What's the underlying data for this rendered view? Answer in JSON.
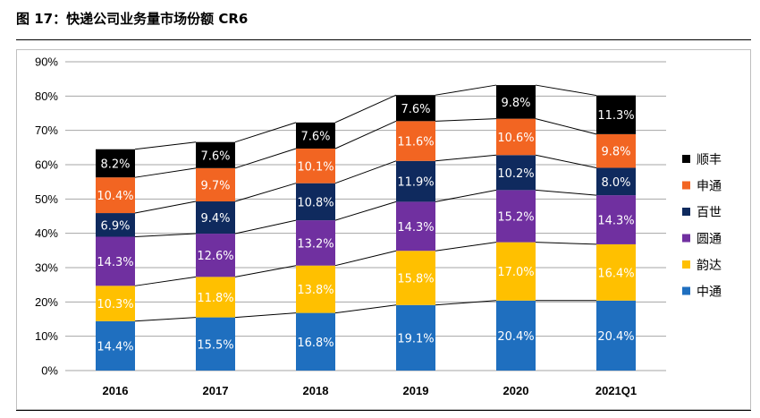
{
  "figure_title": "图 17：快递公司业务量市场份额 CR6",
  "chart_data": {
    "type": "bar",
    "stacked": true,
    "categories": [
      "2016",
      "2017",
      "2018",
      "2019",
      "2020",
      "2021Q1"
    ],
    "ylim": [
      0,
      90
    ],
    "yticks": [
      "0%",
      "10%",
      "20%",
      "30%",
      "40%",
      "50%",
      "60%",
      "70%",
      "80%",
      "90%"
    ],
    "grid": true,
    "legend_position": "right",
    "connector_lines": true,
    "series": [
      {
        "name": "中通",
        "color": "#1f6fbf",
        "label_color": "#ffffff",
        "values": [
          14.4,
          15.5,
          16.8,
          19.1,
          20.4,
          20.4
        ],
        "labels": [
          "14.4%",
          "15.5%",
          "16.8%",
          "19.1%",
          "20.4%",
          "20.4%"
        ]
      },
      {
        "name": "韵达",
        "color": "#ffc000",
        "label_color": "#ffffff",
        "values": [
          10.3,
          11.8,
          13.8,
          15.8,
          17.0,
          16.4
        ],
        "labels": [
          "10.3%",
          "11.8%",
          "13.8%",
          "15.8%",
          "17.0%",
          "16.4%"
        ]
      },
      {
        "name": "圆通",
        "color": "#7030a0",
        "label_color": "#ffffff",
        "values": [
          14.3,
          12.6,
          13.2,
          14.3,
          15.2,
          14.3
        ],
        "labels": [
          "14.3%",
          "12.6%",
          "13.2%",
          "14.3%",
          "15.2%",
          "14.3%"
        ]
      },
      {
        "name": "百世",
        "color": "#0f2a5e",
        "label_color": "#ffffff",
        "values": [
          6.9,
          9.4,
          10.8,
          11.9,
          10.2,
          8.0
        ],
        "labels": [
          "6.9%",
          "9.4%",
          "10.8%",
          "11.9%",
          "10.2%",
          "8.0%"
        ]
      },
      {
        "name": "申通",
        "color": "#f26522",
        "label_color": "#ffffff",
        "values": [
          10.4,
          9.7,
          10.1,
          11.6,
          10.6,
          9.8
        ],
        "labels": [
          "10.4%",
          "9.7%",
          "10.1%",
          "11.6%",
          "10.6%",
          "9.8%"
        ]
      },
      {
        "name": "顺丰",
        "color": "#000000",
        "label_color": "#ffffff",
        "values": [
          8.2,
          7.6,
          7.6,
          7.6,
          9.8,
          11.3
        ],
        "labels": [
          "8.2%",
          "7.6%",
          "7.6%",
          "7.6%",
          "9.8%",
          "11.3%"
        ]
      }
    ],
    "legend_order": [
      "顺丰",
      "申通",
      "百世",
      "圆通",
      "韵达",
      "中通"
    ]
  }
}
